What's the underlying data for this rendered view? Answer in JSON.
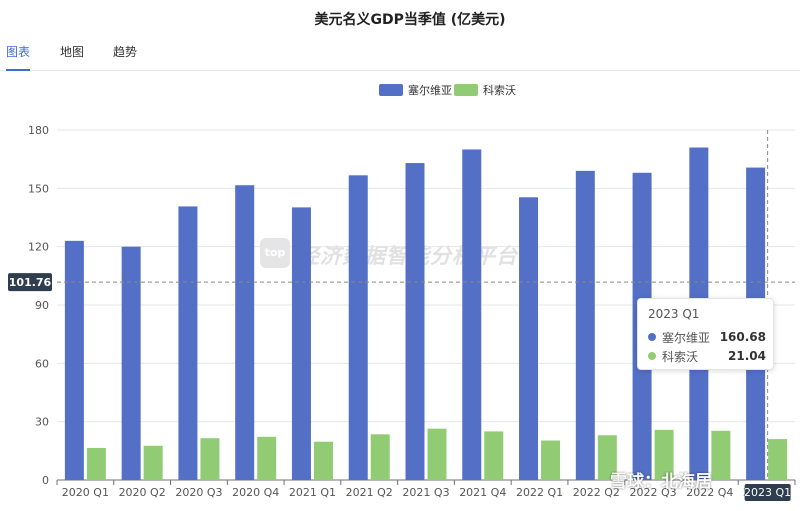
{
  "title": "美元名义GDP当季值 (亿美元)",
  "tabs": [
    {
      "label": "图表",
      "active": true
    },
    {
      "label": "地图",
      "active": false
    },
    {
      "label": "趋势",
      "active": false
    }
  ],
  "watermark": {
    "logo": "top",
    "text": "经济数据智能分析平台"
  },
  "corner_watermark": "雪球：北海居",
  "pointer_label": "101.76",
  "tooltip": {
    "title": "2023 Q1",
    "rows": [
      {
        "name": "塞尔维亚",
        "value": "160.68",
        "color": "#5470c6"
      },
      {
        "name": "科索沃",
        "value": "21.04",
        "color": "#91cc75"
      }
    ]
  },
  "chart_data": {
    "type": "bar",
    "title": "美元名义GDP当季值 (亿美元)",
    "categories": [
      "2020 Q1",
      "2020 Q2",
      "2020 Q3",
      "2020 Q4",
      "2021 Q1",
      "2021 Q2",
      "2021 Q3",
      "2021 Q4",
      "2022 Q1",
      "2022 Q2",
      "2022 Q3",
      "2022 Q4",
      "2023 Q1"
    ],
    "series": [
      {
        "name": "塞尔维亚",
        "color": "#5470c6",
        "values": [
          123.0,
          120.0,
          140.7,
          151.6,
          140.2,
          156.7,
          163.0,
          170.0,
          145.4,
          159.0,
          158.0,
          171.0,
          160.68
        ]
      },
      {
        "name": "科索沃",
        "color": "#91cc75",
        "values": [
          16.5,
          17.6,
          21.5,
          22.2,
          19.7,
          23.5,
          26.4,
          25.0,
          20.3,
          23.0,
          25.8,
          25.3,
          21.04
        ]
      }
    ],
    "ylim": [
      0,
      180
    ],
    "yticks": [
      0,
      30,
      60,
      90,
      120,
      150,
      180
    ],
    "grid": true,
    "legend_position": "top-center",
    "axis_pointer": {
      "y": 101.76,
      "category": "2023 Q1"
    }
  }
}
